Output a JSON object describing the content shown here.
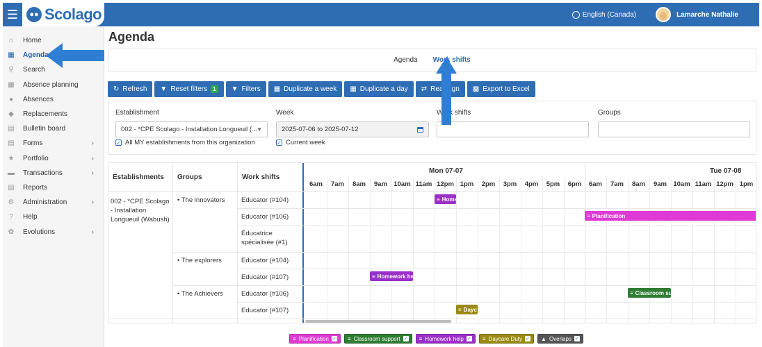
{
  "topbar": {
    "menu_icon": "hamburger-icon",
    "logo_text": "Scolago",
    "language": "English (Canada)",
    "user_name": "Lamarche Nathalie"
  },
  "sidebar": {
    "items": [
      {
        "label": "Home",
        "icon": "home-icon",
        "active": false,
        "has_submenu": false
      },
      {
        "label": "Agenda",
        "icon": "calendar-icon",
        "active": true,
        "has_submenu": false
      },
      {
        "label": "Search",
        "icon": "search-icon",
        "active": false,
        "has_submenu": false
      },
      {
        "label": "Absence planning",
        "icon": "calendar-icon",
        "active": false,
        "has_submenu": false
      },
      {
        "label": "Absences",
        "icon": "user-absence-icon",
        "active": false,
        "has_submenu": false
      },
      {
        "label": "Replacements",
        "icon": "eraser-icon",
        "active": false,
        "has_submenu": false
      },
      {
        "label": "Bulletin board",
        "icon": "board-icon",
        "active": false,
        "has_submenu": false
      },
      {
        "label": "Forms",
        "icon": "form-icon",
        "active": false,
        "has_submenu": true
      },
      {
        "label": "Portfolio",
        "icon": "trophy-icon",
        "active": false,
        "has_submenu": true
      },
      {
        "label": "Transactions",
        "icon": "transactions-icon",
        "active": false,
        "has_submenu": true
      },
      {
        "label": "Reports",
        "icon": "report-icon",
        "active": false,
        "has_submenu": false
      },
      {
        "label": "Administration",
        "icon": "gear-icon",
        "active": false,
        "has_submenu": true
      },
      {
        "label": "Help",
        "icon": "help-icon",
        "active": false,
        "has_submenu": false
      },
      {
        "label": "Evolutions",
        "icon": "sprout-icon",
        "active": false,
        "has_submenu": true
      }
    ]
  },
  "page": {
    "title": "Agenda",
    "tabs": [
      {
        "label": "Agenda",
        "active": false
      },
      {
        "label": "Work shifts",
        "active": true
      }
    ]
  },
  "toolbar": {
    "buttons": [
      {
        "label": "Refresh",
        "icon": "refresh-icon"
      },
      {
        "label": "Reset filters",
        "icon": "filter-reset-icon",
        "badge": "1"
      },
      {
        "label": "Filters",
        "icon": "filter-icon"
      },
      {
        "label": "Duplicate a week",
        "icon": "calendar-icon"
      },
      {
        "label": "Duplicate a day",
        "icon": "calendar-icon"
      },
      {
        "label": "Reassign",
        "icon": "reassign-icon"
      },
      {
        "label": "Export to Excel",
        "icon": "excel-icon"
      }
    ]
  },
  "filters": {
    "establishment_label": "Establishment",
    "establishment_value": "002 - *CPE Scolago - Installation Longueuil (...",
    "all_establishments_label": "All MY establishments from this organization",
    "all_establishments_checked": true,
    "week_label": "Week",
    "week_value": "2025-07-06 to 2025-07-12",
    "current_week_label": "Current week",
    "current_week_checked": true,
    "work_shifts_label": "Work shifts",
    "work_shifts_value": "",
    "groups_label": "Groups",
    "groups_value": ""
  },
  "grid": {
    "headers": {
      "establishments": "Establishments",
      "groups": "Groups",
      "work_shifts": "Work shifts"
    },
    "establishment": "002 - *CPE Scolago - Installation Longueuil (Wabush)",
    "groups": [
      "• The innovators",
      "• The explorers",
      "• The Achievers"
    ],
    "rows": [
      {
        "work_shift": "Educator (#104)"
      },
      {
        "work_shift": "Educator (#106)"
      },
      {
        "work_shift": "Éducatrice spécialisée (#1)"
      },
      {
        "work_shift": "Educator (#104)"
      },
      {
        "work_shift": "Educator (#107)"
      },
      {
        "work_shift": "Educator (#106)"
      },
      {
        "work_shift": "Educator (#107)"
      }
    ],
    "days": [
      {
        "label": "Mon 07-07",
        "hours": [
          "6am",
          "7am",
          "8am",
          "9am",
          "10am",
          "11am",
          "12pm",
          "1pm",
          "2pm",
          "3pm",
          "4pm",
          "5pm",
          "6pm"
        ]
      },
      {
        "label": "Tue 07-08",
        "hours": [
          "6am",
          "7am",
          "8am",
          "9am",
          "10am",
          "11am",
          "12pm",
          "1pm"
        ]
      }
    ],
    "events": [
      {
        "label": "Home",
        "row": 0,
        "start_hour": 12.0,
        "end_hour": 13.0,
        "day": 0,
        "color": "#9b30c8"
      },
      {
        "label": "Planification",
        "row": 1,
        "start_hour": 6.0,
        "end_hour": 14.0,
        "day": 1,
        "color": "#e03ad6"
      },
      {
        "label": "Homework he",
        "row": 4,
        "start_hour": 9.0,
        "end_hour": 11.0,
        "day": 0,
        "color": "#9b30c8"
      },
      {
        "label": "Classroom sup",
        "row": 5,
        "start_hour": 8.0,
        "end_hour": 10.0,
        "day": 1,
        "color": "#2e7d32"
      },
      {
        "label": "Dayc",
        "row": 6,
        "start_hour": 13.0,
        "end_hour": 14.0,
        "day": 0,
        "color": "#9a8a12"
      }
    ]
  },
  "legend": [
    {
      "label": "Planification",
      "color": "#e03ad6"
    },
    {
      "label": "Classroom support",
      "color": "#2e7d32"
    },
    {
      "label": "Homework help",
      "color": "#9b30c8"
    },
    {
      "label": "Daycare Duty",
      "color": "#9a8a12"
    },
    {
      "label": "Overlaps",
      "color": "#555555"
    }
  ]
}
